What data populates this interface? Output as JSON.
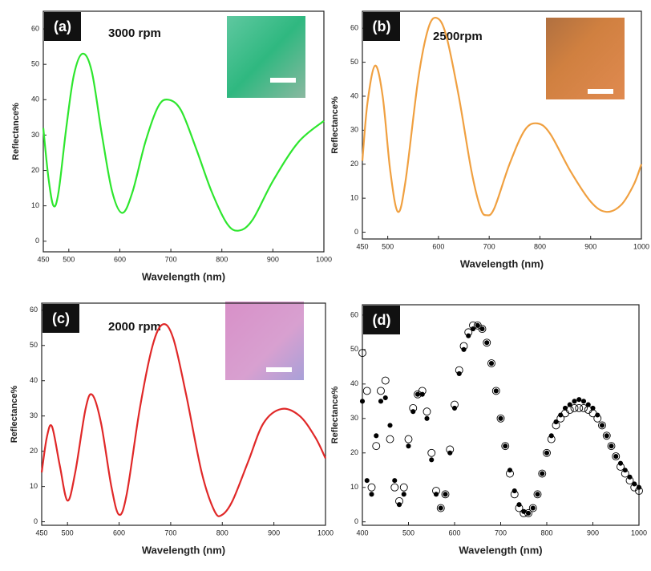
{
  "chart_data": [
    {
      "type": "line",
      "label": "(a)",
      "annotation": "3000 rpm",
      "x_label": "Wavelength (nm)",
      "y_label": "Reflectance%",
      "color": "#2ee62e",
      "x": [
        450,
        460,
        470,
        480,
        495,
        510,
        527,
        545,
        565,
        585,
        605,
        625,
        650,
        675,
        695,
        720,
        750,
        780,
        810,
        833,
        860,
        900,
        950,
        1000
      ],
      "values": [
        32,
        18,
        10,
        14,
        32,
        47,
        53,
        48,
        30,
        14,
        8,
        14,
        28,
        38,
        40,
        37,
        26,
        14,
        5,
        3,
        6,
        17,
        28,
        34
      ],
      "xlim": [
        450,
        1000
      ],
      "xticks": [
        450,
        500,
        600,
        700,
        800,
        900,
        1000
      ],
      "ylim": [
        -3,
        65
      ],
      "yticks": [
        0,
        10,
        20,
        30,
        40,
        50,
        60
      ]
    },
    {
      "type": "line",
      "label": "(b)",
      "annotation": "2500rpm",
      "x_label": "Wavelength (nm)",
      "y_label": "Reflectance%",
      "color": "#f0a040",
      "x": [
        450,
        460,
        475,
        490,
        505,
        520,
        535,
        560,
        580,
        597,
        615,
        640,
        665,
        683,
        695,
        710,
        740,
        770,
        795,
        820,
        860,
        900,
        930,
        960,
        985,
        1000
      ],
      "values": [
        21,
        38,
        49,
        40,
        18,
        6,
        15,
        45,
        60,
        63,
        58,
        40,
        18,
        7,
        5,
        7,
        20,
        30,
        32,
        29,
        18,
        9,
        6,
        8,
        14,
        20
      ],
      "xlim": [
        450,
        1000
      ],
      "xticks": [
        450,
        500,
        600,
        700,
        800,
        900,
        1000
      ],
      "ylim": [
        -2,
        65
      ],
      "yticks": [
        0,
        10,
        20,
        30,
        40,
        50,
        60
      ]
    },
    {
      "type": "line",
      "label": "(c)",
      "annotation": "2000 rpm",
      "x_label": "Wavelength (nm)",
      "y_label": "Reflectance%",
      "color": "#e02828",
      "x": [
        450,
        460,
        470,
        485,
        500,
        515,
        535,
        548,
        565,
        585,
        600,
        615,
        640,
        665,
        685,
        705,
        730,
        760,
        785,
        800,
        820,
        850,
        880,
        915,
        950,
        980,
        1000
      ],
      "values": [
        14,
        24,
        27,
        16,
        6,
        14,
        32,
        36,
        28,
        10,
        2,
        8,
        32,
        50,
        56,
        52,
        36,
        14,
        3,
        2,
        6,
        17,
        28,
        32,
        30,
        24,
        18
      ],
      "xlim": [
        450,
        1000
      ],
      "xticks": [
        450,
        500,
        600,
        700,
        800,
        900,
        1000
      ],
      "ylim": [
        -1,
        62
      ],
      "yticks": [
        0,
        10,
        20,
        30,
        40,
        50,
        60
      ]
    },
    {
      "type": "scatter",
      "label": "(d)",
      "x_label": "Wavelength (nm)",
      "y_label": "Reflectance%",
      "x": [
        400,
        410,
        420,
        430,
        440,
        450,
        460,
        470,
        480,
        490,
        500,
        510,
        520,
        530,
        540,
        550,
        560,
        570,
        580,
        590,
        600,
        610,
        620,
        630,
        640,
        650,
        660,
        670,
        680,
        690,
        700,
        710,
        720,
        730,
        740,
        750,
        760,
        770,
        780,
        790,
        800,
        810,
        820,
        830,
        840,
        850,
        860,
        870,
        880,
        890,
        900,
        910,
        920,
        930,
        940,
        950,
        960,
        970,
        980,
        990,
        1000
      ],
      "series": [
        {
          "marker": "filled",
          "color": "#000000",
          "values": [
            35,
            12,
            8,
            25,
            35,
            36,
            28,
            12,
            5,
            8,
            22,
            32,
            37,
            37,
            30,
            18,
            8,
            4,
            8,
            20,
            33,
            43,
            50,
            54,
            56,
            57,
            56,
            52,
            46,
            38,
            30,
            22,
            15,
            9,
            5,
            3,
            2.5,
            4,
            8,
            14,
            20,
            25,
            29,
            31,
            33,
            34,
            35,
            35.5,
            35,
            34,
            33,
            31,
            28,
            25,
            22,
            19,
            17,
            15,
            13,
            11,
            10
          ]
        },
        {
          "marker": "open",
          "color": "#000000",
          "values": [
            49,
            38,
            10,
            22,
            38,
            41,
            24,
            10,
            6,
            10,
            24,
            33,
            37,
            38,
            32,
            20,
            9,
            4,
            8,
            21,
            34,
            44,
            51,
            55,
            57,
            57,
            56,
            52,
            46,
            38,
            30,
            22,
            14,
            8,
            4,
            2.5,
            2.5,
            4,
            8,
            14,
            20,
            24,
            28,
            30,
            31.5,
            32.5,
            33,
            33,
            33,
            32.5,
            31.5,
            30,
            28,
            25,
            22,
            19,
            16,
            14,
            12,
            10,
            9
          ]
        }
      ],
      "xlim": [
        400,
        1000
      ],
      "xticks": [
        400,
        500,
        600,
        700,
        800,
        900,
        1000
      ],
      "ylim": [
        -1,
        63
      ],
      "yticks": [
        0,
        10,
        20,
        30,
        40,
        50,
        60
      ]
    }
  ]
}
